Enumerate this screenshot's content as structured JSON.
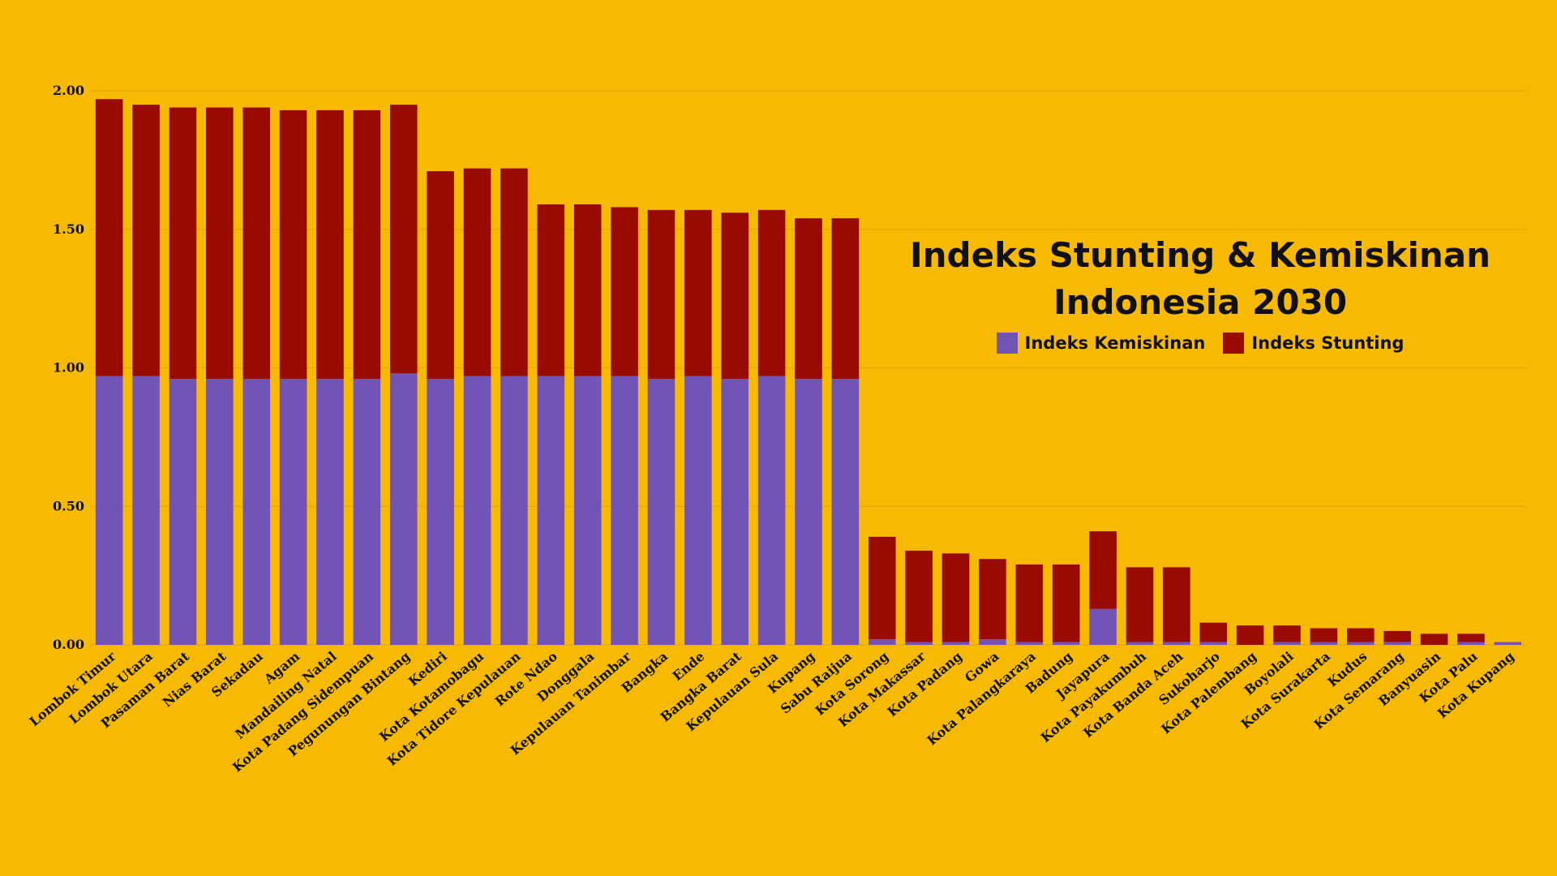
{
  "colors": {
    "background": "#F7BA00",
    "kemiskinan": "#7254B6",
    "stunting": "#990A00",
    "text": "#111111",
    "gridline": "#E0A400"
  },
  "chart_data": {
    "type": "bar",
    "stacked": true,
    "title": "Indeks Stunting & Kemiskinan Indonesia 2030",
    "xlabel": "",
    "ylabel": "",
    "ylim": [
      0,
      2.0
    ],
    "yticks": [
      "0.00",
      "0.50",
      "1.00",
      "1.50",
      "2.00"
    ],
    "grid": true,
    "legend_position": "right",
    "categories": [
      "Lombok Timur",
      "Lombok Utara",
      "Pasaman Barat",
      "Nias Barat",
      "Sekadau",
      "Agam",
      "Mandailing Natal",
      "Kota Padang Sidempuan",
      "Pegunungan Bintang",
      "Kediri",
      "Kota Kotamobagu",
      "Kota Tidore Kepulauan",
      "Rote Ndao",
      "Donggala",
      "Kepulauan Tanimbar",
      "Bangka",
      "Ende",
      "Bangka Barat",
      "Kepulauan Sula",
      "Kupang",
      "Sabu Raijua",
      "Kota Sorong",
      "Kota Makassar",
      "Kota Padang",
      "Gowa",
      "Kota Palangkaraya",
      "Badung",
      "Jayapura",
      "Kota Payakumbuh",
      "Kota Banda Aceh",
      "Sukoharjo",
      "Kota Palembang",
      "Boyolali",
      "Kota Surakarta",
      "Kudus",
      "Kota Semarang",
      "Banyuasin",
      "Kota Palu",
      "Kota Kupang"
    ],
    "series": [
      {
        "name": "Indeks Kemiskinan",
        "color": "#7254B6",
        "values": [
          0.97,
          0.97,
          0.96,
          0.96,
          0.96,
          0.96,
          0.96,
          0.96,
          0.98,
          0.96,
          0.97,
          0.97,
          0.97,
          0.97,
          0.97,
          0.96,
          0.97,
          0.96,
          0.97,
          0.96,
          0.96,
          0.02,
          0.01,
          0.01,
          0.02,
          0.01,
          0.01,
          0.13,
          0.01,
          0.01,
          0.01,
          0.0,
          0.01,
          0.01,
          0.01,
          0.01,
          0.0,
          0.01,
          0.01
        ]
      },
      {
        "name": "Indeks Stunting",
        "color": "#990A00",
        "values": [
          1.0,
          0.98,
          0.98,
          0.98,
          0.98,
          0.97,
          0.97,
          0.97,
          0.97,
          0.75,
          0.75,
          0.75,
          0.62,
          0.62,
          0.61,
          0.61,
          0.6,
          0.6,
          0.6,
          0.58,
          0.58,
          0.37,
          0.33,
          0.32,
          0.29,
          0.28,
          0.28,
          0.28,
          0.27,
          0.27,
          0.07,
          0.07,
          0.06,
          0.05,
          0.05,
          0.04,
          0.04,
          0.03,
          0.0
        ]
      }
    ]
  }
}
